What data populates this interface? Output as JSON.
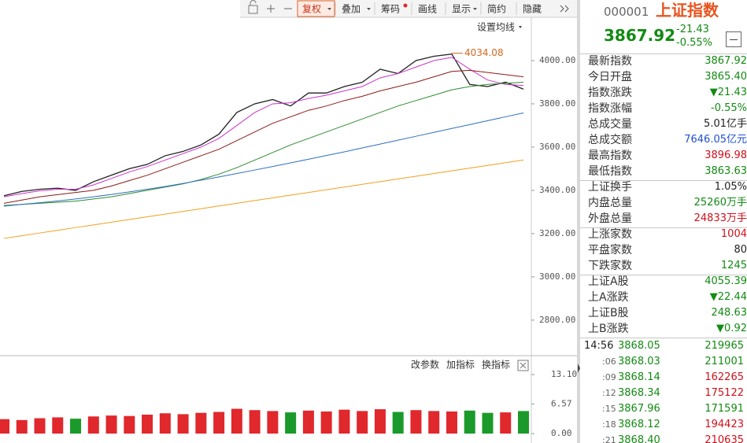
{
  "toolbar": {
    "buttons": [
      "复权",
      "叠加",
      "筹码",
      "画线",
      "显示",
      "简约",
      "隐藏"
    ],
    "ma_setting": "设置均线"
  },
  "chart_data": [
    {
      "type": "line",
      "categories": [
        null,
        null,
        null,
        null,
        null,
        null,
        null,
        null,
        null,
        null,
        null,
        null,
        null,
        null,
        null,
        null,
        null,
        null,
        null,
        null,
        null,
        null,
        null,
        null,
        null,
        null,
        null,
        null,
        null,
        null
      ],
      "series": [
        {
          "color": "#222222",
          "values": [
            3375,
            3395,
            3405,
            3410,
            3400,
            3440,
            3470,
            3500,
            3520,
            3560,
            3580,
            3610,
            3660,
            3760,
            3800,
            3820,
            3790,
            3850,
            3850,
            3880,
            3900,
            3960,
            3940,
            4000,
            4020,
            4030,
            3890,
            3880,
            3900,
            3868
          ]
        },
        {
          "color": "#cc33cc",
          "values": [
            3370,
            3385,
            3398,
            3405,
            3405,
            3425,
            3455,
            3485,
            3510,
            3540,
            3570,
            3600,
            3640,
            3700,
            3760,
            3800,
            3805,
            3825,
            3840,
            3860,
            3880,
            3920,
            3940,
            3970,
            4000,
            4015,
            3960,
            3910,
            3890,
            3885
          ]
        },
        {
          "color": "#8b1a1a",
          "values": [
            3340,
            3355,
            3370,
            3380,
            3390,
            3400,
            3420,
            3445,
            3470,
            3500,
            3530,
            3560,
            3590,
            3630,
            3670,
            3710,
            3740,
            3770,
            3790,
            3815,
            3835,
            3860,
            3880,
            3900,
            3925,
            3950,
            3955,
            3945,
            3935,
            3925
          ]
        },
        {
          "color": "#2e8b2e",
          "values": [
            3330,
            3335,
            3340,
            3345,
            3350,
            3360,
            3370,
            3385,
            3400,
            3415,
            3430,
            3450,
            3475,
            3505,
            3540,
            3575,
            3610,
            3640,
            3670,
            3700,
            3730,
            3760,
            3790,
            3815,
            3840,
            3865,
            3880,
            3890,
            3895,
            3900
          ]
        },
        {
          "color": "#2f6fc0",
          "values": [
            3327,
            3335,
            3343,
            3351,
            3360,
            3370,
            3381,
            3393,
            3405,
            3418,
            3432,
            3447,
            3462,
            3478,
            3494,
            3510,
            3527,
            3544,
            3561,
            3578,
            3596,
            3614,
            3632,
            3650,
            3668,
            3686,
            3704,
            3722,
            3740,
            3758
          ]
        },
        {
          "color": "#f0a020",
          "values": [
            3178,
            3190,
            3203,
            3215,
            3228,
            3240,
            3253,
            3265,
            3278,
            3290,
            3303,
            3315,
            3328,
            3340,
            3353,
            3365,
            3378,
            3390,
            3403,
            3415,
            3428,
            3440,
            3453,
            3465,
            3478,
            3490,
            3503,
            3515,
            3528,
            3540
          ]
        }
      ],
      "ylim": [
        2643,
        4200
      ],
      "yticks": [
        {
          "value": 4000,
          "label": "4000.00"
        },
        {
          "value": 3800,
          "label": "3800.00"
        },
        {
          "value": 3600,
          "label": "3600.00"
        },
        {
          "value": 3400,
          "label": "3400.00"
        },
        {
          "value": 3200,
          "label": "3200.00"
        },
        {
          "value": 3000,
          "label": "3000.00"
        },
        {
          "value": 2800,
          "label": "2800.00"
        }
      ],
      "annotation": {
        "value": 4034.08,
        "label": "4034.08",
        "color": "#d2691e"
      }
    },
    {
      "type": "bar",
      "categories": [
        null,
        null,
        null,
        null,
        null,
        null,
        null,
        null,
        null,
        null,
        null,
        null,
        null,
        null,
        null,
        null,
        null,
        null,
        null,
        null,
        null,
        null,
        null,
        null,
        null,
        null,
        null,
        null,
        null,
        null
      ],
      "values": [
        3.2,
        3.0,
        3.4,
        3.6,
        3.3,
        3.8,
        4.0,
        3.9,
        4.2,
        4.5,
        4.3,
        4.6,
        4.8,
        5.5,
        5.2,
        5.0,
        4.7,
        5.1,
        4.9,
        5.3,
        5.0,
        5.4,
        4.8,
        5.2,
        5.0,
        4.9,
        5.1,
        4.6,
        4.7,
        5.0
      ],
      "colors": {
        "up": "#e0282d",
        "down": "#1a9a2a"
      },
      "ylim": [
        0,
        13.1
      ],
      "yticks": [
        {
          "value": 13.1,
          "label": "13.10"
        },
        {
          "value": 6.57,
          "label": "6.57"
        },
        {
          "value": 0,
          "label": "0.00"
        }
      ]
    }
  ],
  "volume_panel": {
    "buttons": [
      "改参数",
      "加指标",
      "换指标"
    ]
  },
  "quote": {
    "code": "000001",
    "name": "上证指数",
    "price": "3867.92",
    "change": "-21.43",
    "change_pct": "-0.55%",
    "groups": [
      [
        {
          "label": "最新指数",
          "value": "3867.92",
          "color": "#138a13"
        },
        {
          "label": "今日开盘",
          "value": "3865.40",
          "color": "#138a13"
        },
        {
          "label": "指数涨跌",
          "value": "▼21.43",
          "color": "#138a13"
        },
        {
          "label": "指数涨幅",
          "value": "-0.55%",
          "color": "#138a13"
        },
        {
          "label": "总成交量",
          "value": "5.01亿手",
          "color": "#222222"
        },
        {
          "label": "总成交额",
          "value": "7646.05亿元",
          "color": "#1f4fd0"
        },
        {
          "label": "最高指数",
          "value": "3896.98",
          "color": "#d0101b"
        },
        {
          "label": "最低指数",
          "value": "3863.63",
          "color": "#138a13"
        }
      ],
      [
        {
          "label": "上证换手",
          "value": "1.05%",
          "color": "#222222"
        },
        {
          "label": "内盘总量",
          "value": "25260万手",
          "color": "#138a13"
        },
        {
          "label": "外盘总量",
          "value": "24833万手",
          "color": "#d0101b"
        }
      ],
      [
        {
          "label": "上涨家数",
          "value": "1004",
          "color": "#d0101b"
        },
        {
          "label": "平盘家数",
          "value": "80",
          "color": "#222222"
        },
        {
          "label": "下跌家数",
          "value": "1245",
          "color": "#138a13"
        }
      ],
      [
        {
          "label": "上证A股",
          "value": "4055.39",
          "color": "#138a13"
        },
        {
          "label": "上A涨跌",
          "value": "▼22.44",
          "color": "#138a13"
        },
        {
          "label": "上证B股",
          "value": "248.63",
          "color": "#138a13"
        },
        {
          "label": "上B涨跌",
          "value": "▼0.92",
          "color": "#138a13"
        }
      ]
    ]
  },
  "trades": {
    "rows": [
      {
        "time": "14:56",
        "price": "3868.05",
        "volume": "219965",
        "price_color": "#138a13",
        "volume_color": "#138a13"
      },
      {
        "time": ":06",
        "price": "3868.03",
        "volume": "211001",
        "price_color": "#138a13",
        "volume_color": "#138a13"
      },
      {
        "time": ":09",
        "price": "3868.14",
        "volume": "162265",
        "price_color": "#138a13",
        "volume_color": "#d0101b"
      },
      {
        "time": ":12",
        "price": "3868.34",
        "volume": "175122",
        "price_color": "#138a13",
        "volume_color": "#d0101b"
      },
      {
        "time": ":15",
        "price": "3867.96",
        "volume": "171591",
        "price_color": "#138a13",
        "volume_color": "#138a13"
      },
      {
        "time": ":18",
        "price": "3868.12",
        "volume": "194423",
        "price_color": "#138a13",
        "volume_color": "#d0101b"
      },
      {
        "time": ":21",
        "price": "3868.40",
        "volume": "210635",
        "price_color": "#138a13",
        "volume_color": "#d0101b"
      }
    ]
  }
}
